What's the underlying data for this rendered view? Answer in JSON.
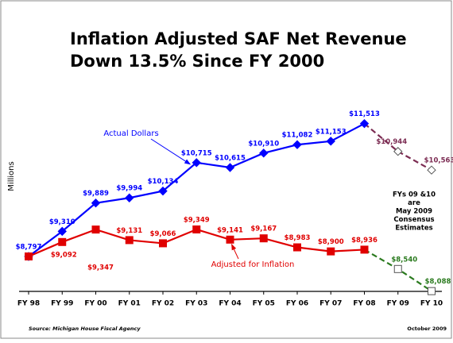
{
  "chart_data": {
    "type": "line",
    "title": [
      "Inflation Adjusted SAF Net Revenue",
      "Down 13.5% Since FY 2000"
    ],
    "y_label": "Millions",
    "categories": [
      "FY 98",
      "FY 99",
      "FY 00",
      "FY 01",
      "FY 02",
      "FY 03",
      "FY 04",
      "FY 05",
      "FY 06",
      "FY 07",
      "FY 08",
      "FY 09",
      "FY 10"
    ],
    "estimate_start": 10,
    "series": [
      {
        "name": "Actual Dollars",
        "color": "#0000ff",
        "estimate_color": "#7b2b52",
        "marker": "diamond",
        "values": [
          8797,
          9310,
          9889,
          9994,
          10134,
          10715,
          10615,
          10910,
          11082,
          11153,
          11513,
          10944,
          10563
        ],
        "value_labels": [
          "$8,797",
          "$9,310",
          "$9,889",
          "$9,994",
          "$10,134",
          "$10,715",
          "$10,615",
          "$10,910",
          "$11,082",
          "$11,153",
          "$11,513",
          "$10,944",
          "$10,563"
        ]
      },
      {
        "name": "Adjusted for Inflation",
        "color": "#e00000",
        "estimate_color": "#2a7a1e",
        "marker": "square",
        "values": [
          8797,
          9092,
          9347,
          9131,
          9066,
          9349,
          9141,
          9167,
          8983,
          8900,
          8936,
          8540,
          8088
        ],
        "value_labels": [
          null,
          "$9,092",
          "$9,347",
          "$9,131",
          "$9,066",
          "$9,349",
          "$9,141",
          "$9,167",
          "$8,983",
          "$8,900",
          "$8,936",
          "$8,540",
          "$8,088"
        ]
      }
    ],
    "ylim": [
      8050,
      11800
    ],
    "annotations": [
      "FYs 09 &10",
      "are",
      "May 2009",
      "Consensus",
      "Estimates"
    ],
    "source": "Source: Michigan House Fiscal Agency",
    "date": "October 2009"
  }
}
